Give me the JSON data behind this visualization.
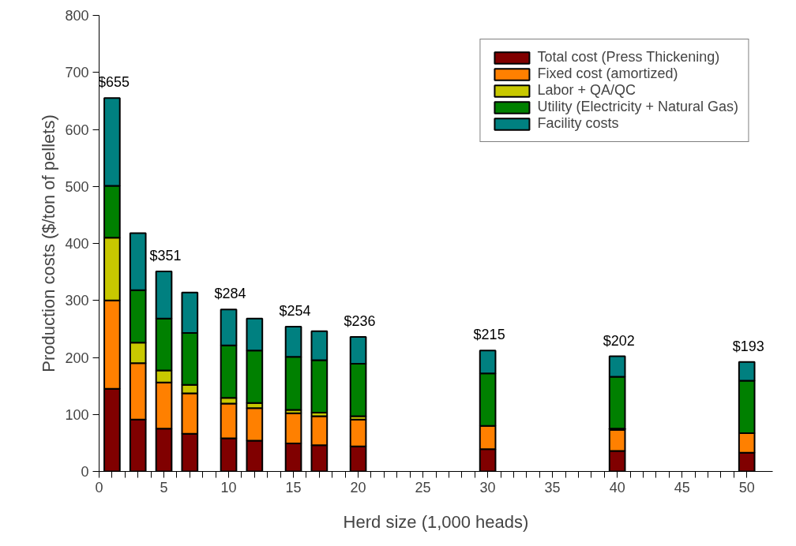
{
  "chart_data": {
    "type": "bar",
    "stacked": true,
    "xlabel": "Herd size (1,000 heads)",
    "ylabel": "Production costs ($/ton of pellets)",
    "x": [
      1,
      3,
      5,
      7,
      10,
      12,
      15,
      17,
      20,
      30,
      40,
      50
    ],
    "series": [
      {
        "name": "Total cost (Press Thickening)",
        "color": "#800000",
        "values": [
          145,
          91,
          75,
          66,
          58,
          54,
          49,
          46,
          44,
          39,
          36,
          33
        ]
      },
      {
        "name": "Fixed cost (amortized)",
        "color": "#ff8000",
        "values": [
          155,
          99,
          81,
          71,
          61,
          57,
          53,
          51,
          47,
          41,
          37,
          34
        ]
      },
      {
        "name": "Labor + QA/QC",
        "color": "#c8c800",
        "values": [
          110,
          36,
          21,
          15,
          10,
          9,
          6,
          6,
          6,
          null,
          2,
          null
        ]
      },
      {
        "name": "Utility (Electricity + Natural Gas)",
        "color": "#008000",
        "values": [
          91,
          92,
          91,
          91,
          92,
          92,
          93,
          92,
          92,
          92,
          91,
          92
        ]
      },
      {
        "name": "Facility costs",
        "color": "#008080",
        "values": [
          154,
          100,
          83,
          71,
          63,
          56,
          53,
          51,
          47,
          40,
          36,
          33
        ]
      }
    ],
    "totals": [
      "$655",
      null,
      "$351",
      null,
      "$284",
      null,
      "$254",
      null,
      "$236",
      "$215",
      "$202",
      "$193"
    ],
    "xlim": [
      0,
      52
    ],
    "ylim": [
      0,
      800
    ],
    "xticks": [
      0,
      {
        "value": 1,
        "label": null
      },
      {
        "value": 2,
        "label": null
      },
      {
        "value": 3,
        "label": null
      },
      {
        "value": 4,
        "label": null
      },
      5,
      {
        "value": 6,
        "label": null
      },
      {
        "value": 7,
        "label": null
      },
      {
        "value": 8,
        "label": null
      },
      {
        "value": 9,
        "label": null
      },
      10,
      {
        "value": 11,
        "label": null
      },
      {
        "value": 12,
        "label": null
      },
      {
        "value": 13,
        "label": null
      },
      {
        "value": 14,
        "label": null
      },
      15,
      {
        "value": 16,
        "label": null
      },
      {
        "value": 17,
        "label": null
      },
      {
        "value": 18,
        "label": null
      },
      {
        "value": 19,
        "label": null
      },
      20,
      {
        "value": 21,
        "label": null
      },
      {
        "value": 22,
        "label": null
      },
      {
        "value": 23,
        "label": null
      },
      {
        "value": 24,
        "label": null
      },
      25,
      {
        "value": 26,
        "label": null
      },
      {
        "value": 27,
        "label": null
      },
      {
        "value": 28,
        "label": null
      },
      {
        "value": 29,
        "label": null
      },
      30,
      {
        "value": 31,
        "label": null
      },
      {
        "value": 32,
        "label": null
      },
      {
        "value": 33,
        "label": null
      },
      {
        "value": 34,
        "label": null
      },
      35,
      {
        "value": 36,
        "label": null
      },
      {
        "value": 37,
        "label": null
      },
      {
        "value": 38,
        "label": null
      },
      {
        "value": 39,
        "label": null
      },
      40,
      {
        "value": 41,
        "label": null
      },
      {
        "value": 42,
        "label": null
      },
      {
        "value": 43,
        "label": null
      },
      {
        "value": 44,
        "label": null
      },
      45,
      {
        "value": 46,
        "label": null
      },
      {
        "value": 47,
        "label": null
      },
      {
        "value": 48,
        "label": null
      },
      {
        "value": 49,
        "label": null
      },
      50
    ],
    "yticks": [
      0,
      100,
      200,
      300,
      400,
      500,
      600,
      700,
      800
    ],
    "grid": false,
    "legend": "top right"
  }
}
